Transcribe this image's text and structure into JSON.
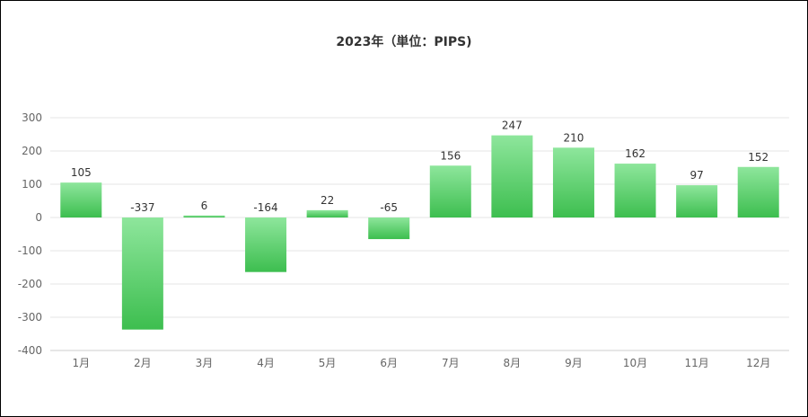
{
  "chart_data": {
    "type": "bar",
    "title": "2023年（単位：PIPS)",
    "xlabel": "",
    "ylabel": "",
    "categories": [
      "1月",
      "2月",
      "3月",
      "4月",
      "5月",
      "6月",
      "7月",
      "8月",
      "9月",
      "10月",
      "11月",
      "12月"
    ],
    "values": [
      105,
      -337,
      6,
      -164,
      22,
      -65,
      156,
      247,
      210,
      162,
      97,
      152
    ],
    "ylim": [
      -400,
      300
    ],
    "yticks": [
      300,
      200,
      100,
      0,
      -100,
      -200,
      -300,
      -400
    ],
    "grid": true,
    "legend": "none",
    "colors": {
      "bar_top": "#8EE69C",
      "bar_bottom": "#3DBE4F",
      "grid": "#E6E6E6",
      "axis": "#CCCCCC"
    }
  }
}
